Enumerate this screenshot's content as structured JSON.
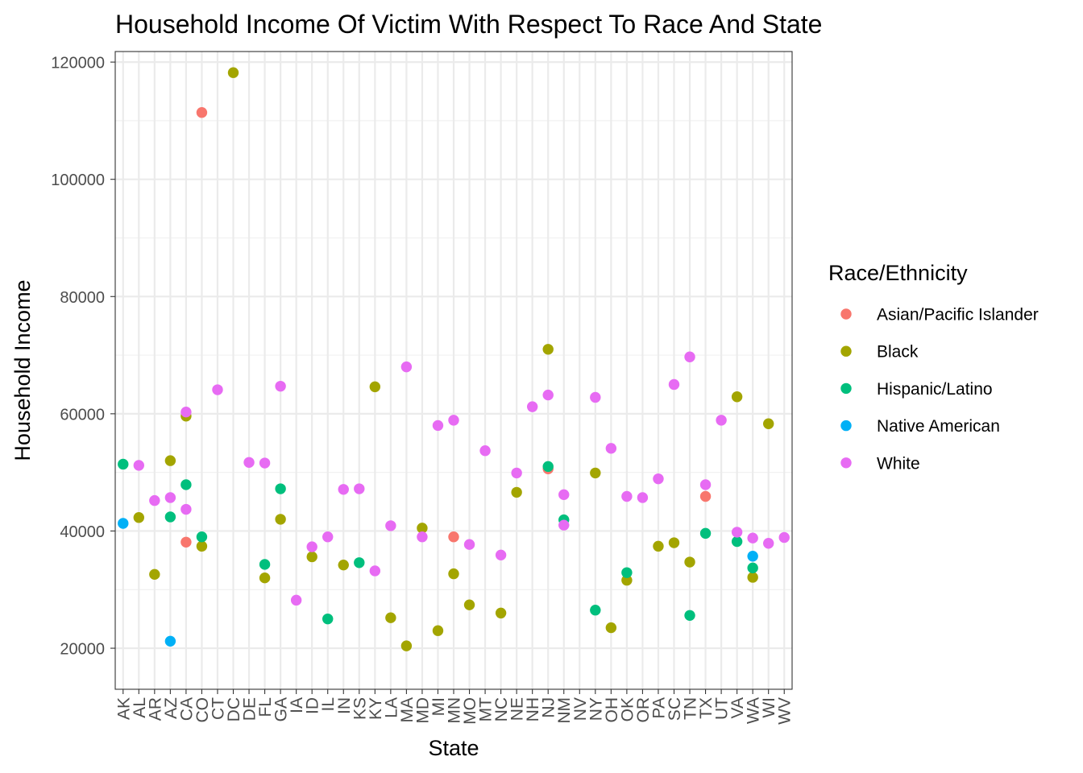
{
  "chart_data": {
    "type": "scatter",
    "title": "Household Income Of Victim With Respect To Race And State",
    "xlabel": "State",
    "ylabel": "Household Income",
    "categories": [
      "AK",
      "AL",
      "AR",
      "AZ",
      "CA",
      "CO",
      "CT",
      "DC",
      "DE",
      "FL",
      "GA",
      "IA",
      "ID",
      "IL",
      "IN",
      "KS",
      "KY",
      "LA",
      "MA",
      "MD",
      "MI",
      "MN",
      "MO",
      "MT",
      "NC",
      "NE",
      "NH",
      "NJ",
      "NM",
      "NV",
      "NY",
      "OH",
      "OK",
      "OR",
      "PA",
      "SC",
      "TN",
      "TX",
      "UT",
      "VA",
      "WA",
      "WI",
      "WV"
    ],
    "ylim": [
      13000,
      121800
    ],
    "y_ticks": [
      20000,
      40000,
      60000,
      80000,
      100000,
      120000
    ],
    "grid": true,
    "legend": {
      "title": "Race/Ethnicity",
      "position": "right"
    },
    "series": [
      {
        "name": "Asian/Pacific Islander",
        "color": "#F8766D",
        "points": [
          [
            "CA",
            38100
          ],
          [
            "CO",
            111400
          ],
          [
            "MN",
            39000
          ],
          [
            "NJ",
            50600
          ],
          [
            "TX",
            45900
          ]
        ]
      },
      {
        "name": "Black",
        "color": "#A3A500",
        "points": [
          [
            "AL",
            42300
          ],
          [
            "AR",
            32600
          ],
          [
            "AZ",
            52000
          ],
          [
            "CA",
            59600
          ],
          [
            "CO",
            37400
          ],
          [
            "DC",
            118200
          ],
          [
            "FL",
            32000
          ],
          [
            "GA",
            42000
          ],
          [
            "ID",
            35600
          ],
          [
            "IN",
            34200
          ],
          [
            "KY",
            64600
          ],
          [
            "LA",
            25200
          ],
          [
            "MA",
            20400
          ],
          [
            "MD",
            40500
          ],
          [
            "MI",
            23000
          ],
          [
            "MN",
            32700
          ],
          [
            "MO",
            27400
          ],
          [
            "NC",
            26000
          ],
          [
            "NE",
            46600
          ],
          [
            "NJ",
            71000
          ],
          [
            "NY",
            49900
          ],
          [
            "OH",
            23500
          ],
          [
            "OK",
            31600
          ],
          [
            "PA",
            37400
          ],
          [
            "SC",
            38000
          ],
          [
            "TN",
            34700
          ],
          [
            "VA",
            62900
          ],
          [
            "WA",
            32100
          ],
          [
            "WI",
            58300
          ]
        ]
      },
      {
        "name": "Hispanic/Latino",
        "color": "#00BF7D",
        "points": [
          [
            "AK",
            51400
          ],
          [
            "AZ",
            42400
          ],
          [
            "CA",
            47900
          ],
          [
            "CO",
            39000
          ],
          [
            "FL",
            34300
          ],
          [
            "GA",
            47200
          ],
          [
            "IL",
            25000
          ],
          [
            "KS",
            34600
          ],
          [
            "NJ",
            51000
          ],
          [
            "NM",
            41900
          ],
          [
            "NY",
            26500
          ],
          [
            "OK",
            32900
          ],
          [
            "TN",
            25600
          ],
          [
            "TX",
            39600
          ],
          [
            "VA",
            38200
          ],
          [
            "WA",
            33700
          ]
        ]
      },
      {
        "name": "Native American",
        "color": "#00B0F6",
        "points": [
          [
            "AK",
            41300
          ],
          [
            "AZ",
            21200
          ],
          [
            "WA",
            35700
          ]
        ]
      },
      {
        "name": "White",
        "color": "#E76BF3",
        "points": [
          [
            "AL",
            51200
          ],
          [
            "AR",
            45200
          ],
          [
            "AZ",
            45700
          ],
          [
            "CA",
            60300
          ],
          [
            "CA",
            43700
          ],
          [
            "CT",
            64100
          ],
          [
            "DE",
            51700
          ],
          [
            "FL",
            51600
          ],
          [
            "GA",
            64700
          ],
          [
            "IA",
            28200
          ],
          [
            "ID",
            37300
          ],
          [
            "IL",
            39000
          ],
          [
            "IN",
            47100
          ],
          [
            "KS",
            47200
          ],
          [
            "KY",
            33200
          ],
          [
            "LA",
            40900
          ],
          [
            "MA",
            68000
          ],
          [
            "MD",
            39000
          ],
          [
            "MI",
            58000
          ],
          [
            "MN",
            58900
          ],
          [
            "MO",
            37700
          ],
          [
            "MT",
            53700
          ],
          [
            "NC",
            35900
          ],
          [
            "NE",
            49900
          ],
          [
            "NH",
            61200
          ],
          [
            "NJ",
            63200
          ],
          [
            "NM",
            46200
          ],
          [
            "NM",
            41000
          ],
          [
            "NY",
            62800
          ],
          [
            "OH",
            54100
          ],
          [
            "OK",
            45900
          ],
          [
            "OR",
            45700
          ],
          [
            "PA",
            48900
          ],
          [
            "SC",
            65000
          ],
          [
            "TN",
            69700
          ],
          [
            "TX",
            47900
          ],
          [
            "UT",
            58900
          ],
          [
            "VA",
            39800
          ],
          [
            "WA",
            38800
          ],
          [
            "WI",
            37900
          ],
          [
            "WV",
            38900
          ]
        ]
      }
    ]
  }
}
